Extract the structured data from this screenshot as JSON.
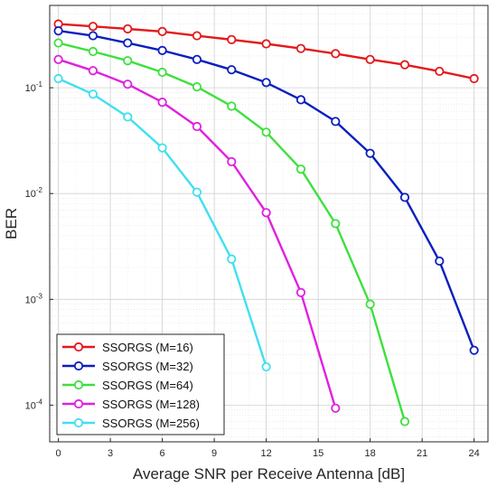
{
  "chart_data": {
    "type": "line",
    "xlabel": "Average SNR per Receive Antenna [dB]",
    "ylabel": "BER",
    "xlim": [
      -0.5,
      24.8
    ],
    "ylim": [
      4.5e-05,
      0.6
    ],
    "yscale": "log",
    "grid": true,
    "minor_grid": true,
    "legend_position": "bottom-left",
    "x_ticks": [
      0,
      3,
      6,
      9,
      12,
      15,
      18,
      21,
      24
    ],
    "x_tick_labels": [
      "0",
      "3",
      "6",
      "9",
      "12",
      "15",
      "18",
      "21",
      "24"
    ],
    "y_ticks": [
      {
        "value": 0.1,
        "base": "10",
        "exp": "-1"
      },
      {
        "value": 0.01,
        "base": "10",
        "exp": "-2"
      },
      {
        "value": 0.001,
        "base": "10",
        "exp": "-3"
      },
      {
        "value": 0.0001,
        "base": "10",
        "exp": "-4"
      }
    ],
    "series": [
      {
        "name": "SSORGS (M=16)",
        "color": "#e31a1c",
        "x": [
          0,
          2,
          4,
          6,
          8,
          10,
          12,
          14,
          16,
          18,
          20,
          22,
          24
        ],
        "y": [
          0.4,
          0.38,
          0.36,
          0.34,
          0.31,
          0.285,
          0.26,
          0.235,
          0.21,
          0.185,
          0.165,
          0.143,
          0.122
        ]
      },
      {
        "name": "SSORGS (M=32)",
        "color": "#0a1fbf",
        "x": [
          0,
          2,
          4,
          6,
          8,
          10,
          12,
          14,
          16,
          18,
          20,
          22,
          24
        ],
        "y": [
          0.345,
          0.31,
          0.265,
          0.225,
          0.185,
          0.148,
          0.112,
          0.077,
          0.048,
          0.024,
          0.0092,
          0.0023,
          0.00033
        ]
      },
      {
        "name": "SSORGS (M=64)",
        "color": "#3ee03e",
        "x": [
          0,
          2,
          4,
          6,
          8,
          10,
          12,
          14,
          16,
          18,
          20
        ],
        "y": [
          0.265,
          0.22,
          0.18,
          0.14,
          0.102,
          0.067,
          0.038,
          0.017,
          0.0052,
          0.0009,
          7e-05
        ]
      },
      {
        "name": "SSORGS (M=128)",
        "color": "#e020e0",
        "x": [
          0,
          2,
          4,
          6,
          8,
          10,
          12,
          14,
          16
        ],
        "y": [
          0.185,
          0.145,
          0.108,
          0.073,
          0.043,
          0.02,
          0.0066,
          0.00116,
          9.35e-05
        ]
      },
      {
        "name": "SSORGS (M=256)",
        "color": "#40e0f0",
        "x": [
          0,
          2,
          4,
          6,
          8,
          10,
          12
        ],
        "y": [
          0.122,
          0.087,
          0.053,
          0.027,
          0.0103,
          0.0024,
          0.00023
        ]
      }
    ]
  }
}
